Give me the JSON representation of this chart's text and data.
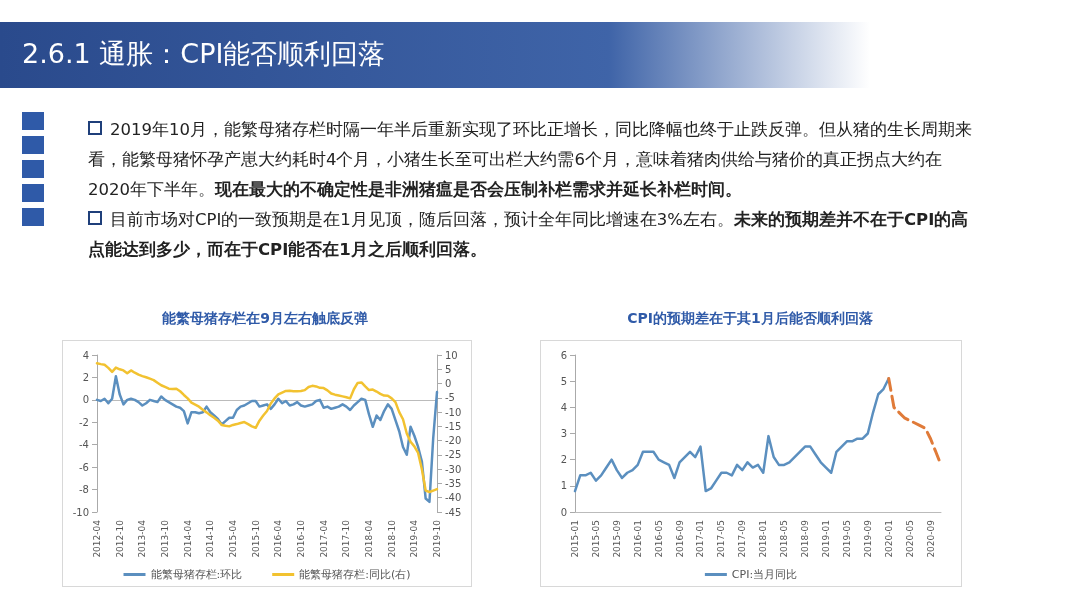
{
  "chart_data": [
    {
      "type": "other",
      "title": "2.6.1 通胀：CPI能否顺利回落",
      "annotations": [
        "2019年10月，能繁母猪存栏时隔一年半后重新实现了环比正增长，同比降幅也终于止跌反弹。但从猪的生长周期来看，能繁母猪怀孕产崽大约耗时4个月，小猪生长至可出栏大约需6个月，意味着猪肉供给与猪价的真正拐点大约在2020年下半年。",
        "现在最大的不确定性是非洲猪瘟是否会压制补栏需求并延长补栏时间。",
        "目前市场对CPI的一致预期是在1月见顶，随后回落，预计全年同比增速在3%左右。",
        "未来的预期差并不在于CPI的高点能达到多少，而在于CPI能否在1月之后顺利回落。"
      ]
    },
    {
      "type": "line",
      "title": "能繁母猪存栏在9月左右触底反弹",
      "marker": "none",
      "legend": "bottom",
      "categories": [
        "2012-04",
        null,
        null,
        null,
        null,
        null,
        "2012-10",
        null,
        null,
        null,
        null,
        null,
        "2013-04",
        null,
        null,
        null,
        null,
        null,
        "2013-10",
        null,
        null,
        null,
        null,
        null,
        "2014-04",
        null,
        null,
        null,
        null,
        null,
        "2014-10",
        null,
        null,
        null,
        null,
        null,
        "2015-04",
        null,
        null,
        null,
        null,
        null,
        "2015-10",
        null,
        null,
        null,
        null,
        null,
        "2016-04",
        null,
        null,
        null,
        null,
        null,
        "2016-10",
        null,
        null,
        null,
        null,
        null,
        "2017-04",
        null,
        null,
        null,
        null,
        null,
        "2017-10",
        null,
        null,
        null,
        null,
        null,
        "2018-04",
        null,
        null,
        null,
        null,
        null,
        "2018-10",
        null,
        null,
        null,
        null,
        null,
        "2019-04",
        null,
        null,
        null,
        null,
        null,
        "2019-10"
      ],
      "ylim": [
        -10,
        4
      ],
      "yticks": [
        -10,
        -8,
        -6,
        -4,
        -2,
        0,
        2,
        4
      ],
      "y2lim": [
        -45,
        10
      ],
      "y2ticks": [
        -45,
        -40,
        -35,
        -30,
        -25,
        -20,
        -15,
        -10,
        -5,
        0,
        5,
        10
      ],
      "series": [
        {
          "name": "能繁母猪存栏:环比",
          "color": "#5b8fbf",
          "values": [
            0,
            -0.1,
            0.1,
            -0.3,
            0.1,
            2.1,
            0.5,
            -0.4,
            0,
            0.1,
            0,
            -0.2,
            -0.5,
            -0.3,
            0,
            -0.1,
            -0.2,
            0.3,
            0,
            -0.2,
            -0.4,
            -0.6,
            -0.7,
            -1,
            -2.1,
            -1.1,
            -1.1,
            -1.2,
            -1.1,
            -0.6,
            -1.1,
            -1.4,
            -1.7,
            -2.2,
            -1.9,
            -1.6,
            -1.6,
            -0.9,
            -0.6,
            -0.5,
            -0.3,
            -0.1,
            -0.1,
            -0.6,
            -0.5,
            -0.4,
            -0.8,
            -0.4,
            0.1,
            -0.3,
            -0.1,
            -0.5,
            -0.4,
            -0.2,
            -0.5,
            -0.6,
            -0.5,
            -0.4,
            -0.1,
            0,
            -0.7,
            -0.6,
            -0.8,
            -0.7,
            -0.6,
            -0.4,
            -0.6,
            -0.9,
            -0.5,
            -0.2,
            0.1,
            0,
            -1.3,
            -2.4,
            -1.4,
            -1.8,
            -1,
            -0.4,
            -0.8,
            -1.8,
            -2.8,
            -4.2,
            -4.9,
            -2.4,
            -3.2,
            -4.2,
            -5.5,
            -8.8,
            -9.1,
            -3.4,
            0.7
          ]
        },
        {
          "name": "能繁母猪存栏:同比(右)",
          "color": "#f2c230",
          "axis": "y2",
          "values": [
            7.1,
            6.8,
            6.6,
            5.5,
            4.1,
            5.6,
            5.0,
            4.6,
            3.6,
            4.6,
            3.8,
            3.1,
            2.6,
            2.2,
            1.7,
            1.2,
            0.3,
            -0.6,
            -1.2,
            -1.8,
            -1.9,
            -1.8,
            -2.7,
            -4.0,
            -5.2,
            -6.7,
            -7.4,
            -8.1,
            -9.2,
            -10.1,
            -11.1,
            -12.0,
            -13.0,
            -14.5,
            -14.8,
            -15.0,
            -14.5,
            -14.2,
            -13.8,
            -13.5,
            -14.2,
            -15.0,
            -15.5,
            -13.0,
            -11.2,
            -9.6,
            -7.0,
            -5.2,
            -3.8,
            -3.2,
            -2.6,
            -2.5,
            -2.7,
            -2.7,
            -2.6,
            -2.3,
            -1.2,
            -0.8,
            -1.0,
            -1.5,
            -1.6,
            -2.4,
            -3.5,
            -3.9,
            -4.2,
            -4.5,
            -4.8,
            -5.2,
            -2.0,
            0.2,
            0.4,
            -1.0,
            -2.3,
            -2.1,
            -2.8,
            -3.6,
            -4.2,
            -4.3,
            -5.2,
            -6.5,
            -10.0,
            -12.5,
            -17.5,
            -20.4,
            -22.0,
            -24.3,
            -30.0,
            -37.5,
            -38.0,
            -37.5,
            -37.0
          ]
        }
      ]
    },
    {
      "type": "line",
      "title": "CPI的预期差在于其1月后能否顺利回落",
      "marker": "none",
      "legend": "bottom",
      "categories": [
        "2015-01",
        null,
        null,
        null,
        "2015-05",
        null,
        null,
        null,
        "2015-09",
        null,
        null,
        null,
        "2016-01",
        null,
        null,
        null,
        "2016-05",
        null,
        null,
        null,
        "2016-09",
        null,
        null,
        null,
        "2017-01",
        null,
        null,
        null,
        "2017-05",
        null,
        null,
        null,
        "2017-09",
        null,
        null,
        null,
        "2018-01",
        null,
        null,
        null,
        "2018-05",
        null,
        null,
        null,
        "2018-09",
        null,
        null,
        null,
        "2019-01",
        null,
        null,
        null,
        "2019-05",
        null,
        null,
        null,
        "2019-09",
        null,
        null,
        null,
        "2020-01",
        null,
        null,
        null,
        "2020-05",
        null,
        null,
        null,
        "2020-09",
        null,
        null
      ],
      "ylim": [
        0,
        6
      ],
      "yticks": [
        0,
        1,
        2,
        3,
        4,
        5,
        6
      ],
      "series": [
        {
          "name": "CPI:当月同比",
          "color": "#5b8fbf",
          "values": [
            0.8,
            1.4,
            1.4,
            1.5,
            1.2,
            1.4,
            1.7,
            2.0,
            1.6,
            1.3,
            1.5,
            1.6,
            1.8,
            2.3,
            2.3,
            2.3,
            2.0,
            1.9,
            1.8,
            1.3,
            1.9,
            2.1,
            2.3,
            2.1,
            2.5,
            0.8,
            0.9,
            1.2,
            1.5,
            1.5,
            1.4,
            1.8,
            1.6,
            1.9,
            1.7,
            1.8,
            1.5,
            2.9,
            2.1,
            1.8,
            1.8,
            1.9,
            2.1,
            2.3,
            2.5,
            2.5,
            2.2,
            1.9,
            1.7,
            1.5,
            2.3,
            2.5,
            2.7,
            2.7,
            2.8,
            2.8,
            3.0,
            3.8,
            4.5,
            4.7,
            5.1,
            null,
            null,
            null,
            null,
            null,
            null,
            null,
            null,
            null,
            null
          ]
        },
        {
          "color": "#e07b39",
          "line_style": "dashed",
          "values": [
            null,
            null,
            null,
            null,
            null,
            null,
            null,
            null,
            null,
            null,
            null,
            null,
            null,
            null,
            null,
            null,
            null,
            null,
            null,
            null,
            null,
            null,
            null,
            null,
            null,
            null,
            null,
            null,
            null,
            null,
            null,
            null,
            null,
            null,
            null,
            null,
            null,
            null,
            null,
            null,
            null,
            null,
            null,
            null,
            null,
            null,
            null,
            null,
            null,
            null,
            null,
            null,
            null,
            null,
            null,
            null,
            null,
            null,
            null,
            null,
            5.1,
            4.0,
            3.8,
            3.6,
            3.5,
            3.4,
            3.3,
            3.2,
            2.8,
            2.3,
            1.8
          ]
        }
      ]
    }
  ]
}
